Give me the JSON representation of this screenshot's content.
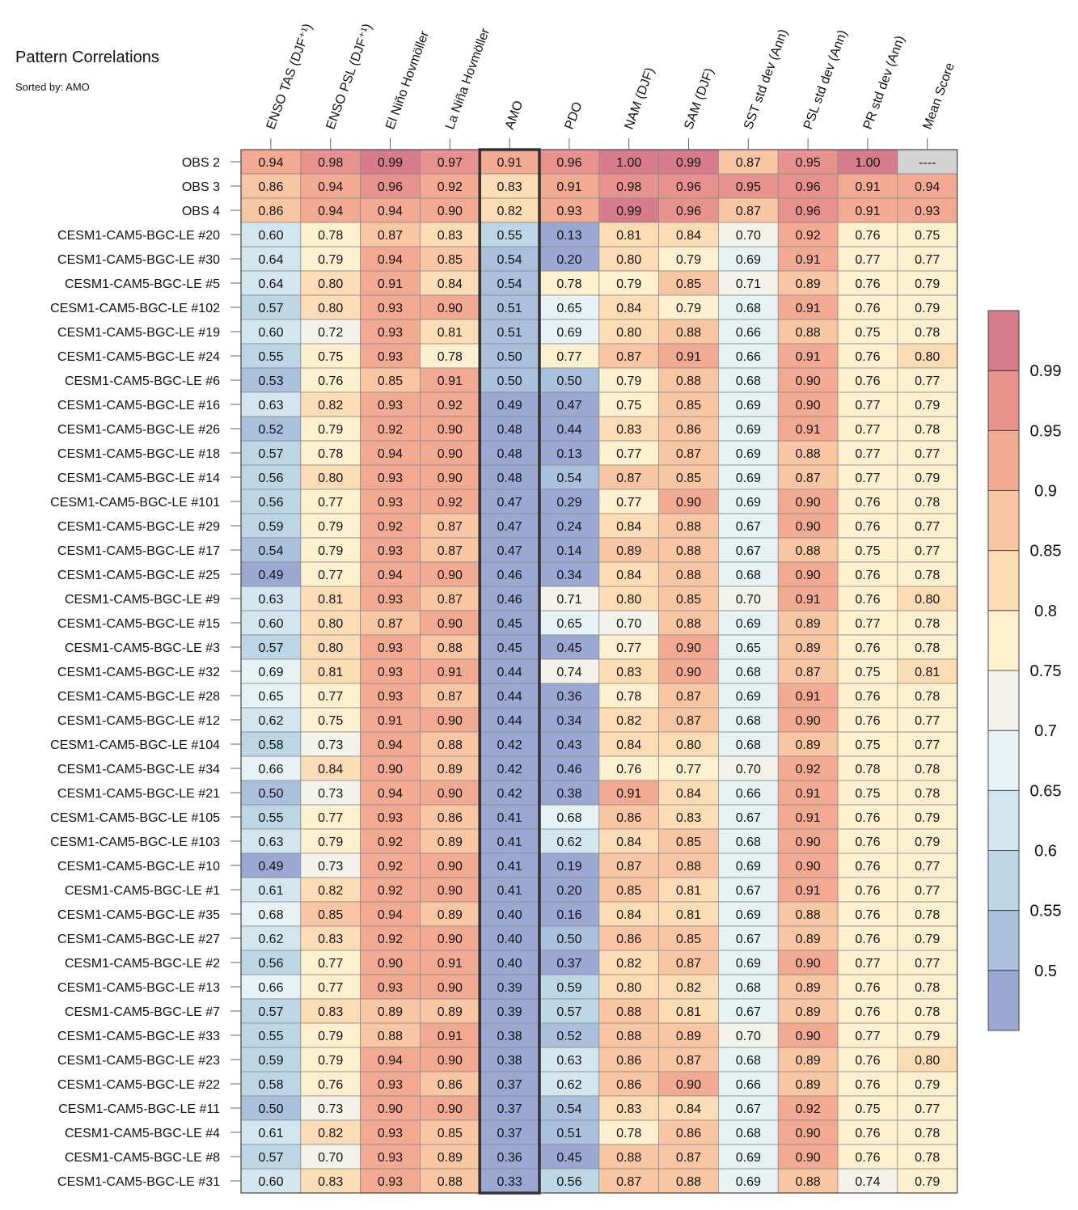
{
  "title": "Pattern Correlations",
  "subtitle": "Sorted by: AMO",
  "chart_data": {
    "type": "heatmap",
    "title": "Pattern Correlations",
    "subtitle": "Sorted by: AMO",
    "highlighted_column": "AMO",
    "missing_text": "----",
    "columns": [
      "ENSO TAS (DJF⁺¹)",
      "ENSO PSL (DJF⁺¹)",
      "El Niño Hovmöller",
      "La Niña Hovmöller",
      "AMO",
      "PDO",
      "NAM (DJF)",
      "SAM (DJF)",
      "SST std dev (Ann)",
      "PSL std dev (Ann)",
      "PR std dev (Ann)",
      "Mean Score"
    ],
    "rows": [
      "OBS 2",
      "OBS 3",
      "OBS 4",
      "CESM1-CAM5-BGC-LE #20",
      "CESM1-CAM5-BGC-LE #30",
      "CESM1-CAM5-BGC-LE #5",
      "CESM1-CAM5-BGC-LE #102",
      "CESM1-CAM5-BGC-LE #19",
      "CESM1-CAM5-BGC-LE #24",
      "CESM1-CAM5-BGC-LE #6",
      "CESM1-CAM5-BGC-LE #16",
      "CESM1-CAM5-BGC-LE #26",
      "CESM1-CAM5-BGC-LE #18",
      "CESM1-CAM5-BGC-LE #14",
      "CESM1-CAM5-BGC-LE #101",
      "CESM1-CAM5-BGC-LE #29",
      "CESM1-CAM5-BGC-LE #17",
      "CESM1-CAM5-BGC-LE #25",
      "CESM1-CAM5-BGC-LE #9",
      "CESM1-CAM5-BGC-LE #15",
      "CESM1-CAM5-BGC-LE #3",
      "CESM1-CAM5-BGC-LE #32",
      "CESM1-CAM5-BGC-LE #28",
      "CESM1-CAM5-BGC-LE #12",
      "CESM1-CAM5-BGC-LE #104",
      "CESM1-CAM5-BGC-LE #34",
      "CESM1-CAM5-BGC-LE #21",
      "CESM1-CAM5-BGC-LE #105",
      "CESM1-CAM5-BGC-LE #103",
      "CESM1-CAM5-BGC-LE #10",
      "CESM1-CAM5-BGC-LE #1",
      "CESM1-CAM5-BGC-LE #35",
      "CESM1-CAM5-BGC-LE #27",
      "CESM1-CAM5-BGC-LE #2",
      "CESM1-CAM5-BGC-LE #13",
      "CESM1-CAM5-BGC-LE #7",
      "CESM1-CAM5-BGC-LE #33",
      "CESM1-CAM5-BGC-LE #23",
      "CESM1-CAM5-BGC-LE #22",
      "CESM1-CAM5-BGC-LE #11",
      "CESM1-CAM5-BGC-LE #4",
      "CESM1-CAM5-BGC-LE #8",
      "CESM1-CAM5-BGC-LE #31"
    ],
    "values": [
      [
        "0.94",
        "0.98",
        "0.99",
        "0.97",
        "0.91",
        "0.96",
        "1.00",
        "0.99",
        "0.87",
        "0.95",
        "1.00",
        null
      ],
      [
        "0.86",
        "0.94",
        "0.96",
        "0.92",
        "0.83",
        "0.91",
        "0.98",
        "0.96",
        "0.95",
        "0.96",
        "0.91",
        "0.94"
      ],
      [
        "0.86",
        "0.94",
        "0.94",
        "0.90",
        "0.82",
        "0.93",
        "0.99",
        "0.96",
        "0.87",
        "0.96",
        "0.91",
        "0.93"
      ],
      [
        "0.60",
        "0.78",
        "0.87",
        "0.83",
        "0.55",
        "0.13",
        "0.81",
        "0.84",
        "0.70",
        "0.92",
        "0.76",
        "0.75"
      ],
      [
        "0.64",
        "0.79",
        "0.94",
        "0.85",
        "0.54",
        "0.20",
        "0.80",
        "0.79",
        "0.69",
        "0.91",
        "0.77",
        "0.77"
      ],
      [
        "0.64",
        "0.80",
        "0.91",
        "0.84",
        "0.54",
        "0.78",
        "0.79",
        "0.85",
        "0.71",
        "0.89",
        "0.76",
        "0.79"
      ],
      [
        "0.57",
        "0.80",
        "0.93",
        "0.90",
        "0.51",
        "0.65",
        "0.84",
        "0.79",
        "0.68",
        "0.91",
        "0.76",
        "0.79"
      ],
      [
        "0.60",
        "0.72",
        "0.93",
        "0.81",
        "0.51",
        "0.69",
        "0.80",
        "0.88",
        "0.66",
        "0.88",
        "0.75",
        "0.78"
      ],
      [
        "0.55",
        "0.75",
        "0.93",
        "0.78",
        "0.50",
        "0.77",
        "0.87",
        "0.91",
        "0.66",
        "0.91",
        "0.76",
        "0.80"
      ],
      [
        "0.53",
        "0.76",
        "0.85",
        "0.91",
        "0.50",
        "0.50",
        "0.79",
        "0.88",
        "0.68",
        "0.90",
        "0.76",
        "0.77"
      ],
      [
        "0.63",
        "0.82",
        "0.93",
        "0.92",
        "0.49",
        "0.47",
        "0.75",
        "0.85",
        "0.69",
        "0.90",
        "0.77",
        "0.79"
      ],
      [
        "0.52",
        "0.79",
        "0.92",
        "0.90",
        "0.48",
        "0.44",
        "0.83",
        "0.86",
        "0.69",
        "0.91",
        "0.77",
        "0.78"
      ],
      [
        "0.57",
        "0.78",
        "0.94",
        "0.90",
        "0.48",
        "0.13",
        "0.77",
        "0.87",
        "0.69",
        "0.88",
        "0.77",
        "0.77"
      ],
      [
        "0.56",
        "0.80",
        "0.93",
        "0.90",
        "0.48",
        "0.54",
        "0.87",
        "0.85",
        "0.69",
        "0.87",
        "0.77",
        "0.79"
      ],
      [
        "0.56",
        "0.77",
        "0.93",
        "0.92",
        "0.47",
        "0.29",
        "0.77",
        "0.90",
        "0.69",
        "0.90",
        "0.76",
        "0.78"
      ],
      [
        "0.59",
        "0.79",
        "0.92",
        "0.87",
        "0.47",
        "0.24",
        "0.84",
        "0.88",
        "0.67",
        "0.90",
        "0.76",
        "0.77"
      ],
      [
        "0.54",
        "0.79",
        "0.93",
        "0.87",
        "0.47",
        "0.14",
        "0.89",
        "0.88",
        "0.67",
        "0.88",
        "0.75",
        "0.77"
      ],
      [
        "0.49",
        "0.77",
        "0.94",
        "0.90",
        "0.46",
        "0.34",
        "0.84",
        "0.88",
        "0.68",
        "0.90",
        "0.76",
        "0.78"
      ],
      [
        "0.63",
        "0.81",
        "0.93",
        "0.87",
        "0.46",
        "0.71",
        "0.80",
        "0.85",
        "0.70",
        "0.91",
        "0.76",
        "0.80"
      ],
      [
        "0.60",
        "0.80",
        "0.87",
        "0.90",
        "0.45",
        "0.65",
        "0.70",
        "0.88",
        "0.69",
        "0.89",
        "0.77",
        "0.78"
      ],
      [
        "0.57",
        "0.80",
        "0.93",
        "0.88",
        "0.45",
        "0.45",
        "0.77",
        "0.90",
        "0.65",
        "0.89",
        "0.76",
        "0.78"
      ],
      [
        "0.69",
        "0.81",
        "0.93",
        "0.91",
        "0.44",
        "0.74",
        "0.83",
        "0.90",
        "0.68",
        "0.87",
        "0.75",
        "0.81"
      ],
      [
        "0.65",
        "0.77",
        "0.93",
        "0.87",
        "0.44",
        "0.36",
        "0.78",
        "0.87",
        "0.69",
        "0.91",
        "0.76",
        "0.78"
      ],
      [
        "0.62",
        "0.75",
        "0.91",
        "0.90",
        "0.44",
        "0.34",
        "0.82",
        "0.87",
        "0.68",
        "0.90",
        "0.76",
        "0.77"
      ],
      [
        "0.58",
        "0.73",
        "0.94",
        "0.88",
        "0.42",
        "0.43",
        "0.84",
        "0.80",
        "0.68",
        "0.89",
        "0.75",
        "0.77"
      ],
      [
        "0.66",
        "0.84",
        "0.90",
        "0.89",
        "0.42",
        "0.46",
        "0.76",
        "0.77",
        "0.70",
        "0.92",
        "0.78",
        "0.78"
      ],
      [
        "0.50",
        "0.73",
        "0.94",
        "0.90",
        "0.42",
        "0.38",
        "0.91",
        "0.84",
        "0.66",
        "0.91",
        "0.75",
        "0.78"
      ],
      [
        "0.55",
        "0.77",
        "0.93",
        "0.86",
        "0.41",
        "0.68",
        "0.86",
        "0.83",
        "0.67",
        "0.91",
        "0.76",
        "0.79"
      ],
      [
        "0.63",
        "0.79",
        "0.92",
        "0.89",
        "0.41",
        "0.62",
        "0.84",
        "0.85",
        "0.68",
        "0.90",
        "0.76",
        "0.79"
      ],
      [
        "0.49",
        "0.73",
        "0.92",
        "0.90",
        "0.41",
        "0.19",
        "0.87",
        "0.88",
        "0.69",
        "0.90",
        "0.76",
        "0.77"
      ],
      [
        "0.61",
        "0.82",
        "0.92",
        "0.90",
        "0.41",
        "0.20",
        "0.85",
        "0.81",
        "0.67",
        "0.91",
        "0.76",
        "0.77"
      ],
      [
        "0.68",
        "0.85",
        "0.94",
        "0.89",
        "0.40",
        "0.16",
        "0.84",
        "0.81",
        "0.69",
        "0.88",
        "0.76",
        "0.78"
      ],
      [
        "0.62",
        "0.83",
        "0.92",
        "0.90",
        "0.40",
        "0.50",
        "0.86",
        "0.85",
        "0.67",
        "0.89",
        "0.76",
        "0.79"
      ],
      [
        "0.56",
        "0.77",
        "0.90",
        "0.91",
        "0.40",
        "0.37",
        "0.82",
        "0.87",
        "0.69",
        "0.90",
        "0.77",
        "0.77"
      ],
      [
        "0.66",
        "0.77",
        "0.93",
        "0.90",
        "0.39",
        "0.59",
        "0.80",
        "0.82",
        "0.68",
        "0.89",
        "0.76",
        "0.78"
      ],
      [
        "0.57",
        "0.83",
        "0.89",
        "0.89",
        "0.39",
        "0.57",
        "0.88",
        "0.81",
        "0.67",
        "0.89",
        "0.76",
        "0.78"
      ],
      [
        "0.55",
        "0.79",
        "0.88",
        "0.91",
        "0.38",
        "0.52",
        "0.88",
        "0.89",
        "0.70",
        "0.90",
        "0.77",
        "0.79"
      ],
      [
        "0.59",
        "0.79",
        "0.94",
        "0.90",
        "0.38",
        "0.63",
        "0.86",
        "0.87",
        "0.68",
        "0.89",
        "0.76",
        "0.80"
      ],
      [
        "0.58",
        "0.76",
        "0.93",
        "0.86",
        "0.37",
        "0.62",
        "0.86",
        "0.90",
        "0.66",
        "0.89",
        "0.76",
        "0.79"
      ],
      [
        "0.50",
        "0.73",
        "0.90",
        "0.90",
        "0.37",
        "0.54",
        "0.83",
        "0.84",
        "0.67",
        "0.92",
        "0.75",
        "0.77"
      ],
      [
        "0.61",
        "0.82",
        "0.93",
        "0.85",
        "0.37",
        "0.51",
        "0.78",
        "0.86",
        "0.68",
        "0.90",
        "0.76",
        "0.78"
      ],
      [
        "0.57",
        "0.70",
        "0.93",
        "0.89",
        "0.36",
        "0.45",
        "0.88",
        "0.87",
        "0.69",
        "0.90",
        "0.76",
        "0.78"
      ],
      [
        "0.60",
        "0.83",
        "0.93",
        "0.88",
        "0.33",
        "0.56",
        "0.87",
        "0.88",
        "0.69",
        "0.88",
        "0.74",
        "0.79"
      ]
    ],
    "colorbar": {
      "levels": [
        0.5,
        0.55,
        0.6,
        0.65,
        0.7,
        0.75,
        0.8,
        0.85,
        0.9,
        0.95,
        0.99
      ],
      "labels": [
        "0.5",
        "0.55",
        "0.6",
        "0.65",
        "0.7",
        "0.75",
        "0.8",
        "0.85",
        "0.9",
        "0.95",
        "0.99"
      ],
      "colors": [
        "#9aa8d2",
        "#abc0dd",
        "#bcd6e6",
        "#d3e6ef",
        "#e7f2f4",
        "#f3f3eb",
        "#fdf0cf",
        "#fcdcb5",
        "#f9c6a3",
        "#f2aa93",
        "#e8928e",
        "#d67c8c"
      ],
      "missing_color": "#d3d3d3"
    }
  }
}
